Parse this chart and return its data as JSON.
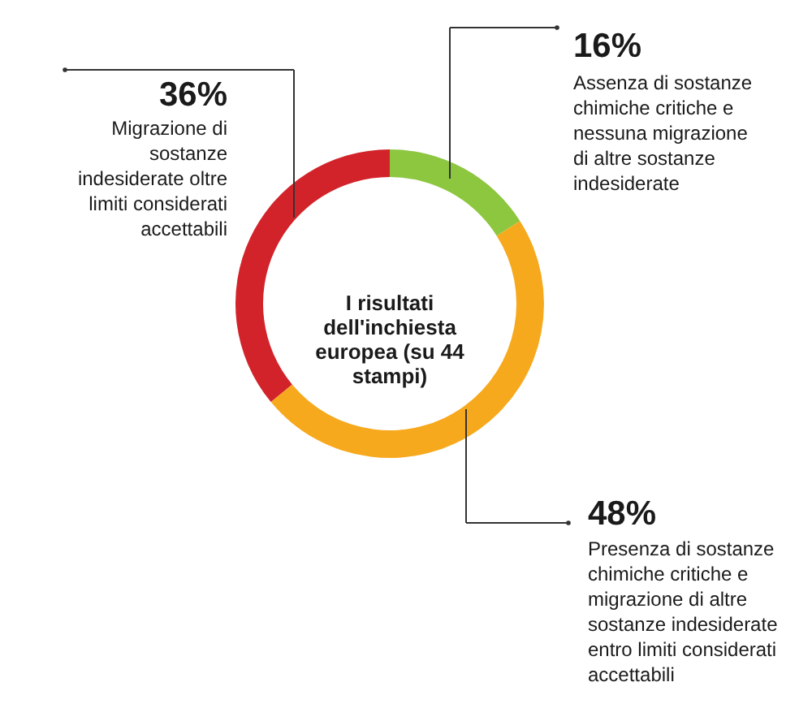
{
  "chart_data": {
    "type": "donut",
    "title": "I risultati dell'inchiesta europea (su 44 stampi)",
    "categories": [
      "Assenza di sostanze chimiche critiche e nessuna migrazione di altre sostanze indesiderate",
      "Presenza di sostanze chimiche critiche e migrazione di altre sostanze indesiderate entro limiti considerati accettabili",
      "Migrazione di sostanze indesiderate oltre limiti considerati accettabili"
    ],
    "values": [
      16,
      48,
      36
    ],
    "colors": [
      "#8dc63f",
      "#f7a91d",
      "#d2232a"
    ],
    "value_labels": [
      "16%",
      "48%",
      "36%"
    ]
  }
}
